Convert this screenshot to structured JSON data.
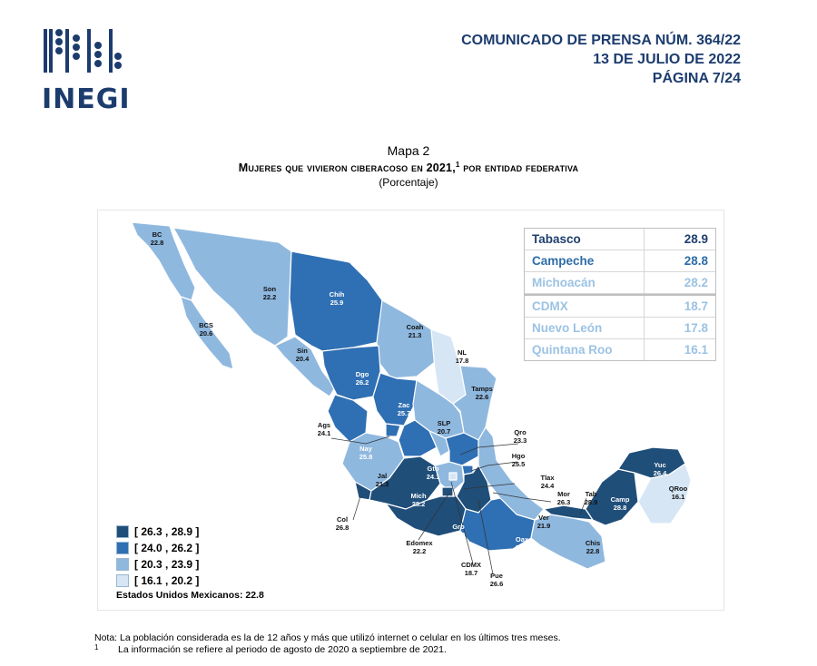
{
  "header": {
    "logo_text": "INEGI",
    "line1": "COMUNICADO DE PRENSA NÚM. 364/22",
    "line2": "13 DE JULIO DE 2022",
    "line3": "PÁGINA 7/24"
  },
  "map": {
    "label": "Mapa 2",
    "title": "Mujeres que vivieron ciberacoso en 2021,",
    "title_note": "1",
    "title_suffix": " por entidad federativa",
    "subtitle": "(Porcentaje)",
    "colors": {
      "c1": "#1f4e79",
      "c2": "#2f6fb3",
      "c3": "#8fb8df",
      "c4": "#d6e6f5"
    },
    "ranking": [
      {
        "name": "Tabasco",
        "value": "28.9",
        "color": "#1f3f6e"
      },
      {
        "name": "Campeche",
        "value": "28.8",
        "color": "#2e6da8"
      },
      {
        "name": "Michoacán",
        "value": "28.2",
        "color": "#9cc3e3"
      },
      {
        "name": "CDMX",
        "value": "18.7",
        "color": "#9cc3e3"
      },
      {
        "name": "Nuevo León",
        "value": "17.8",
        "color": "#9cc3e3"
      },
      {
        "name": "Quintana Roo",
        "value": "16.1",
        "color": "#9cc3e3"
      }
    ],
    "states": [
      {
        "abbr": "BC",
        "value": "22.8",
        "color": "#8fb8df"
      },
      {
        "abbr": "Son",
        "value": "22.2",
        "color": "#8fb8df"
      },
      {
        "abbr": "Chih",
        "value": "25.9",
        "color": "#2f6fb3"
      },
      {
        "abbr": "Coah",
        "value": "21.3",
        "color": "#8fb8df"
      },
      {
        "abbr": "NL",
        "value": "17.8",
        "color": "#d6e6f5"
      },
      {
        "abbr": "BCS",
        "value": "20.6",
        "color": "#8fb8df"
      },
      {
        "abbr": "Sin",
        "value": "20.4",
        "color": "#8fb8df"
      },
      {
        "abbr": "Dgo",
        "value": "26.2",
        "color": "#2f6fb3"
      },
      {
        "abbr": "Tamps",
        "value": "22.6",
        "color": "#8fb8df"
      },
      {
        "abbr": "Zac",
        "value": "25.7",
        "color": "#2f6fb3"
      },
      {
        "abbr": "SLP",
        "value": "20.7",
        "color": "#8fb8df"
      },
      {
        "abbr": "Ags",
        "value": "24.1",
        "color": "#2f6fb3"
      },
      {
        "abbr": "Nay",
        "value": "25.8",
        "color": "#2f6fb3"
      },
      {
        "abbr": "Qro",
        "value": "23.3",
        "color": "#8fb8df"
      },
      {
        "abbr": "Hgo",
        "value": "25.5",
        "color": "#2f6fb3"
      },
      {
        "abbr": "Gto",
        "value": "24.1",
        "color": "#2f6fb3"
      },
      {
        "abbr": "Jal",
        "value": "21.3",
        "color": "#8fb8df"
      },
      {
        "abbr": "Tlax",
        "value": "24.4",
        "color": "#2f6fb3"
      },
      {
        "abbr": "Mich",
        "value": "28.2",
        "color": "#1f4e79"
      },
      {
        "abbr": "Mor",
        "value": "26.3",
        "color": "#1f4e79"
      },
      {
        "abbr": "Tab",
        "value": "28.9",
        "color": "#1f4e79"
      },
      {
        "abbr": "Yuc",
        "value": "26.4",
        "color": "#1f4e79"
      },
      {
        "abbr": "Camp",
        "value": "28.8",
        "color": "#1f4e79"
      },
      {
        "abbr": "QRoo",
        "value": "16.1",
        "color": "#d6e6f5"
      },
      {
        "abbr": "Col",
        "value": "26.8",
        "color": "#1f4e79"
      },
      {
        "abbr": "Ver",
        "value": "21.9",
        "color": "#8fb8df"
      },
      {
        "abbr": "Gro",
        "value": "27.0",
        "color": "#1f4e79"
      },
      {
        "abbr": "Oax",
        "value": "25.0",
        "color": "#2f6fb3"
      },
      {
        "abbr": "Edomex",
        "value": "22.2",
        "color": "#8fb8df"
      },
      {
        "abbr": "Chis",
        "value": "22.8",
        "color": "#8fb8df"
      },
      {
        "abbr": "CDMX",
        "value": "18.7",
        "color": "#d6e6f5"
      },
      {
        "abbr": "Pue",
        "value": "26.6",
        "color": "#1f4e79"
      }
    ],
    "legend": [
      {
        "label": "[ 26.3 , 28.9 ]",
        "color": "#1f4e79"
      },
      {
        "label": "[ 24.0 , 26.2 ]",
        "color": "#2f6fb3"
      },
      {
        "label": "[ 20.3 , 23.9 ]",
        "color": "#8fb8df"
      },
      {
        "label": "[ 16.1 , 20.2 ]",
        "color": "#d6e6f5"
      }
    ],
    "national": "Estados Unidos Mexicanos:  22.8"
  },
  "notes": {
    "note": "Nota:  La población considerada es la de 12 años y más que utilizó internet o celular en los últimos tres meses.",
    "footnote_mark": "1",
    "footnote": "La información se refiere al periodo de agosto de 2020 a septiembre de 2021."
  }
}
